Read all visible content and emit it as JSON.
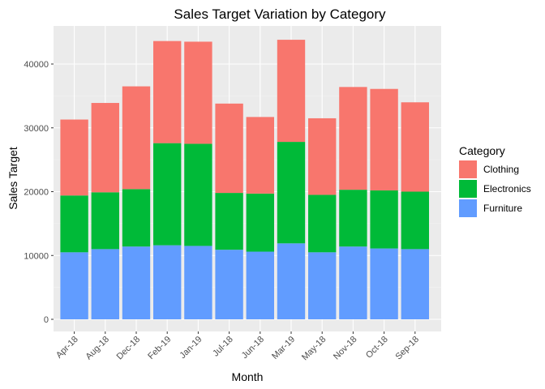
{
  "chart_data": {
    "type": "bar",
    "stacked": true,
    "title": "Sales Target Variation by Category",
    "xlabel": "Month",
    "ylabel": "Sales Target",
    "ylim": [
      0,
      45000
    ],
    "yticks": [
      0,
      10000,
      20000,
      30000,
      40000
    ],
    "ytick_labels": [
      "0",
      "10000",
      "20000",
      "30000",
      "40000"
    ],
    "grid": true,
    "legend_placement": "right",
    "legend_title": "Category",
    "categories": [
      "Apr-18",
      "Aug-18",
      "Dec-18",
      "Feb-19",
      "Jan-19",
      "Jul-18",
      "Jun-18",
      "Mar-19",
      "May-18",
      "Nov-18",
      "Oct-18",
      "Sep-18"
    ],
    "series": [
      {
        "name": "Furniture",
        "color": "#619CFF",
        "values": [
          10500,
          11000,
          11400,
          11600,
          11500,
          10900,
          10600,
          11900,
          10500,
          11400,
          11100,
          11000
        ]
      },
      {
        "name": "Electronics",
        "color": "#00BA38",
        "values": [
          8900,
          8900,
          9000,
          16000,
          16000,
          8900,
          9100,
          15900,
          9000,
          8900,
          9100,
          9000
        ]
      },
      {
        "name": "Clothing",
        "color": "#F8766D",
        "values": [
          11900,
          14000,
          16100,
          16000,
          16000,
          14000,
          12000,
          16000,
          12000,
          16100,
          15900,
          14000
        ]
      }
    ],
    "legend_order": [
      "Clothing",
      "Electronics",
      "Furniture"
    ]
  }
}
